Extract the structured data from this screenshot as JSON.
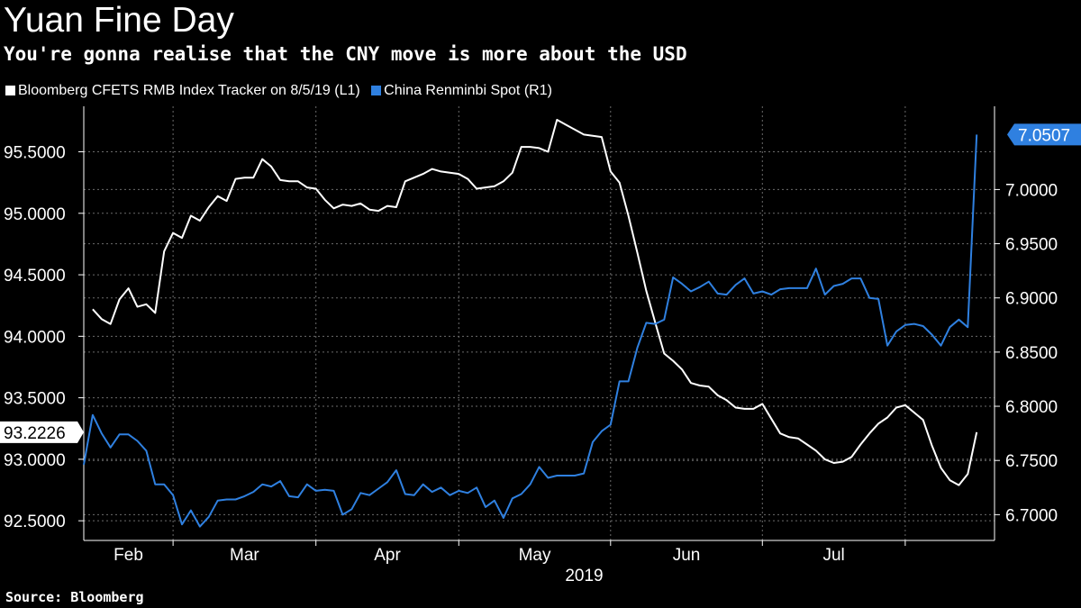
{
  "title": "Yuan Fine Day",
  "subtitle": "You're gonna realise that the CNY move is more about the USD",
  "source": "Source: Bloomberg",
  "colors": {
    "background": "#000000",
    "series_left": "#ffffff",
    "series_right": "#2f80e0",
    "grid": "#6b6b6b"
  },
  "chart_data": {
    "type": "line",
    "title": "Yuan Fine Day",
    "subtitle": "You're gonna realise that the CNY move is more about the USD",
    "xlabel": "2019",
    "x_tick_labels": [
      "Feb",
      "Mar",
      "Apr",
      "May",
      "Jun",
      "Jul"
    ],
    "x_range": [
      0,
      102
    ],
    "x_month_starts": [
      10,
      26,
      42,
      59,
      76,
      92
    ],
    "grid": true,
    "legend_position": "top-left",
    "left_axis": {
      "ticks": [
        92.5,
        93.0,
        93.5,
        94.0,
        94.5,
        95.0,
        95.5
      ],
      "tick_labels": [
        "92.5000",
        "93.0000",
        "93.5000",
        "94.0000",
        "94.5000",
        "95.0000",
        "95.5000"
      ],
      "range": [
        92.34,
        95.87
      ]
    },
    "right_axis": {
      "ticks": [
        6.7,
        6.75,
        6.8,
        6.85,
        6.9,
        6.95,
        7.0
      ],
      "tick_labels": [
        "6.7000",
        "6.7500",
        "6.8000",
        "6.8500",
        "6.9000",
        "6.9500",
        "7.0000"
      ],
      "range": [
        6.6762,
        7.0768
      ]
    },
    "series": [
      {
        "name": "Bloomberg CFETS RMB Index Tracker  on 8/5/19 (L1)",
        "axis": "left",
        "color": "#ffffff",
        "last_value_label": "93.2226",
        "x": [
          1,
          2,
          3,
          4,
          5,
          6,
          7,
          8,
          9,
          10,
          11,
          12,
          13,
          14,
          15,
          16,
          17,
          18,
          19,
          20,
          21,
          22,
          23,
          24,
          25,
          26,
          27,
          28,
          29,
          30,
          31,
          32,
          33,
          34,
          35,
          36,
          37,
          38,
          39,
          40,
          41,
          42,
          43,
          44,
          45,
          46,
          47,
          48,
          49,
          50,
          51,
          52,
          53,
          54,
          55,
          56,
          57,
          58,
          59,
          60,
          61,
          62,
          63,
          64,
          65,
          66,
          67,
          68,
          69,
          70,
          71,
          72,
          73,
          74,
          75,
          76,
          77,
          78,
          79,
          80,
          81,
          82,
          83,
          84,
          85,
          86,
          87,
          88,
          89,
          90,
          91,
          92,
          93,
          94,
          95,
          96,
          97,
          98,
          99,
          100
        ],
        "values": [
          94.22,
          94.14,
          94.1,
          94.3,
          94.39,
          94.24,
          94.26,
          94.19,
          94.69,
          94.84,
          94.8,
          94.98,
          94.94,
          95.05,
          95.14,
          95.1,
          95.28,
          95.29,
          95.29,
          95.44,
          95.38,
          95.27,
          95.26,
          95.26,
          95.21,
          95.2,
          95.11,
          95.04,
          95.07,
          95.06,
          95.08,
          95.03,
          95.02,
          95.06,
          95.05,
          95.26,
          95.29,
          95.32,
          95.36,
          95.34,
          95.33,
          95.32,
          95.28,
          95.2,
          95.21,
          95.22,
          95.26,
          95.33,
          95.54,
          95.54,
          95.53,
          95.5,
          95.76,
          95.72,
          95.68,
          95.64,
          95.63,
          95.62,
          95.34,
          95.25,
          94.98,
          94.68,
          94.37,
          94.11,
          93.86,
          93.8,
          93.73,
          93.62,
          93.6,
          93.59,
          93.52,
          93.48,
          93.42,
          93.41,
          93.41,
          93.45,
          93.33,
          93.21,
          93.18,
          93.17,
          93.12,
          93.07,
          93.0,
          92.97,
          92.98,
          93.02,
          93.12,
          93.21,
          93.29,
          93.34,
          93.42,
          93.44,
          93.38,
          93.32,
          93.11,
          92.93,
          92.83,
          92.79,
          92.88,
          93.22
        ]
      },
      {
        "name": "China Renminbi Spot  (R1)",
        "axis": "right",
        "color": "#2f80e0",
        "last_value_label": "7.0507",
        "x": [
          0,
          1,
          2,
          3,
          4,
          5,
          6,
          7,
          8,
          9,
          10,
          11,
          12,
          13,
          14,
          15,
          16,
          17,
          18,
          19,
          20,
          21,
          22,
          23,
          24,
          25,
          26,
          27,
          28,
          29,
          30,
          31,
          32,
          33,
          34,
          35,
          36,
          37,
          38,
          39,
          40,
          41,
          42,
          43,
          44,
          45,
          46,
          47,
          48,
          49,
          50,
          51,
          52,
          53,
          54,
          55,
          56,
          57,
          58,
          59,
          60,
          61,
          62,
          63,
          64,
          65,
          66,
          67,
          68,
          69,
          70,
          71,
          72,
          73,
          74,
          75,
          76,
          77,
          78,
          79,
          80,
          81,
          82,
          83,
          84,
          85,
          86,
          87,
          88,
          89,
          90,
          91,
          92,
          93,
          94,
          95,
          96,
          97,
          98,
          99,
          100
        ],
        "values": [
          6.746,
          6.792,
          6.775,
          6.762,
          6.774,
          6.774,
          6.768,
          6.759,
          6.728,
          6.728,
          6.718,
          6.691,
          6.704,
          6.689,
          6.698,
          6.713,
          6.714,
          6.714,
          6.717,
          6.721,
          6.728,
          6.726,
          6.731,
          6.717,
          6.716,
          6.728,
          6.722,
          6.723,
          6.722,
          6.7,
          6.705,
          6.72,
          6.718,
          6.724,
          6.73,
          6.741,
          6.719,
          6.718,
          6.728,
          6.721,
          6.725,
          6.718,
          6.722,
          6.72,
          6.725,
          6.707,
          6.713,
          6.697,
          6.715,
          6.719,
          6.728,
          6.744,
          6.734,
          6.736,
          6.736,
          6.736,
          6.738,
          6.767,
          6.777,
          6.783,
          6.823,
          6.823,
          6.854,
          6.877,
          6.876,
          6.88,
          6.919,
          6.913,
          6.906,
          6.91,
          6.915,
          6.904,
          6.903,
          6.912,
          6.918,
          6.904,
          6.906,
          6.903,
          6.908,
          6.909,
          6.909,
          6.909,
          6.927,
          6.903,
          6.911,
          6.913,
          6.918,
          6.918,
          6.9,
          6.899,
          6.856,
          6.869,
          6.875,
          6.876,
          6.874,
          6.866,
          6.856,
          6.873,
          6.88,
          6.873,
          7.0507
        ]
      }
    ]
  }
}
